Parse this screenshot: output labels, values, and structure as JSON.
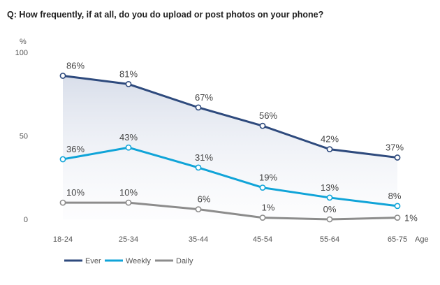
{
  "question": "Q: How frequently, if at all, do you do upload or post photos on your phone?",
  "chart_data": {
    "type": "line",
    "ylabel": "%",
    "xlabel": "Age",
    "ylim": [
      0,
      100
    ],
    "yticks": [
      "0",
      "50",
      "100"
    ],
    "categories": [
      "18-24",
      "25-34",
      "35-44",
      "45-54",
      "55-64",
      "65-75"
    ],
    "legend_position": "bottom-left",
    "grid": false,
    "series": [
      {
        "name": "Ever",
        "color": "#2e4a7d",
        "values": [
          86,
          81,
          67,
          56,
          42,
          37
        ],
        "labels": [
          "86%",
          "81%",
          "67%",
          "56%",
          "42%",
          "37%"
        ]
      },
      {
        "name": "Weekly",
        "color": "#10a4d8",
        "values": [
          36,
          43,
          31,
          19,
          13,
          8
        ],
        "labels": [
          "36%",
          "43%",
          "31%",
          "19%",
          "13%",
          "8%"
        ]
      },
      {
        "name": "Daily",
        "color": "#8c8c8c",
        "values": [
          10,
          10,
          6,
          1,
          0,
          1
        ],
        "labels": [
          "10%",
          "10%",
          "6%",
          "1%",
          "0%",
          "1%"
        ]
      }
    ]
  }
}
